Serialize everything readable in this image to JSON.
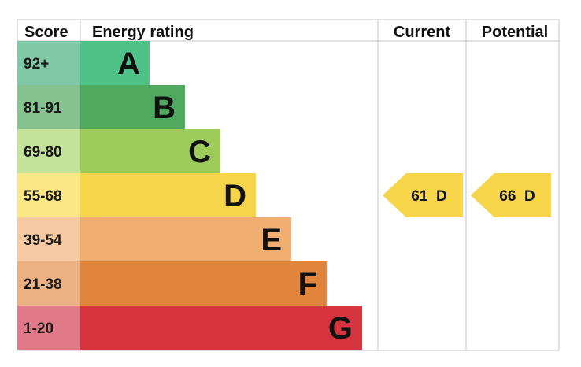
{
  "chart_data": {
    "type": "bar",
    "headers": {
      "score": "Score",
      "rating": "Energy rating",
      "current": "Current",
      "potential": "Potential"
    },
    "bands": [
      {
        "letter": "A",
        "range": "92+",
        "bar_color": "#4fc387",
        "score_color": "#80c8a6"
      },
      {
        "letter": "B",
        "range": "81-91",
        "bar_color": "#4faa5f",
        "score_color": "#86c391"
      },
      {
        "letter": "C",
        "range": "69-80",
        "bar_color": "#9dcc5a",
        "score_color": "#c3e29a"
      },
      {
        "letter": "D",
        "range": "55-68",
        "bar_color": "#f6d54a",
        "score_color": "#fbe783"
      },
      {
        "letter": "E",
        "range": "39-54",
        "bar_color": "#f0ae70",
        "score_color": "#f6cba4"
      },
      {
        "letter": "F",
        "range": "21-38",
        "bar_color": "#e2853c",
        "score_color": "#ecb182"
      },
      {
        "letter": "G",
        "range": "1-20",
        "bar_color": "#d7343f",
        "score_color": "#e07a88"
      }
    ],
    "current": {
      "value": 61,
      "band": "D",
      "label": "61  D",
      "color": "#f6d54a"
    },
    "potential": {
      "value": 66,
      "band": "D",
      "label": "66  D",
      "color": "#f6d54a"
    }
  }
}
